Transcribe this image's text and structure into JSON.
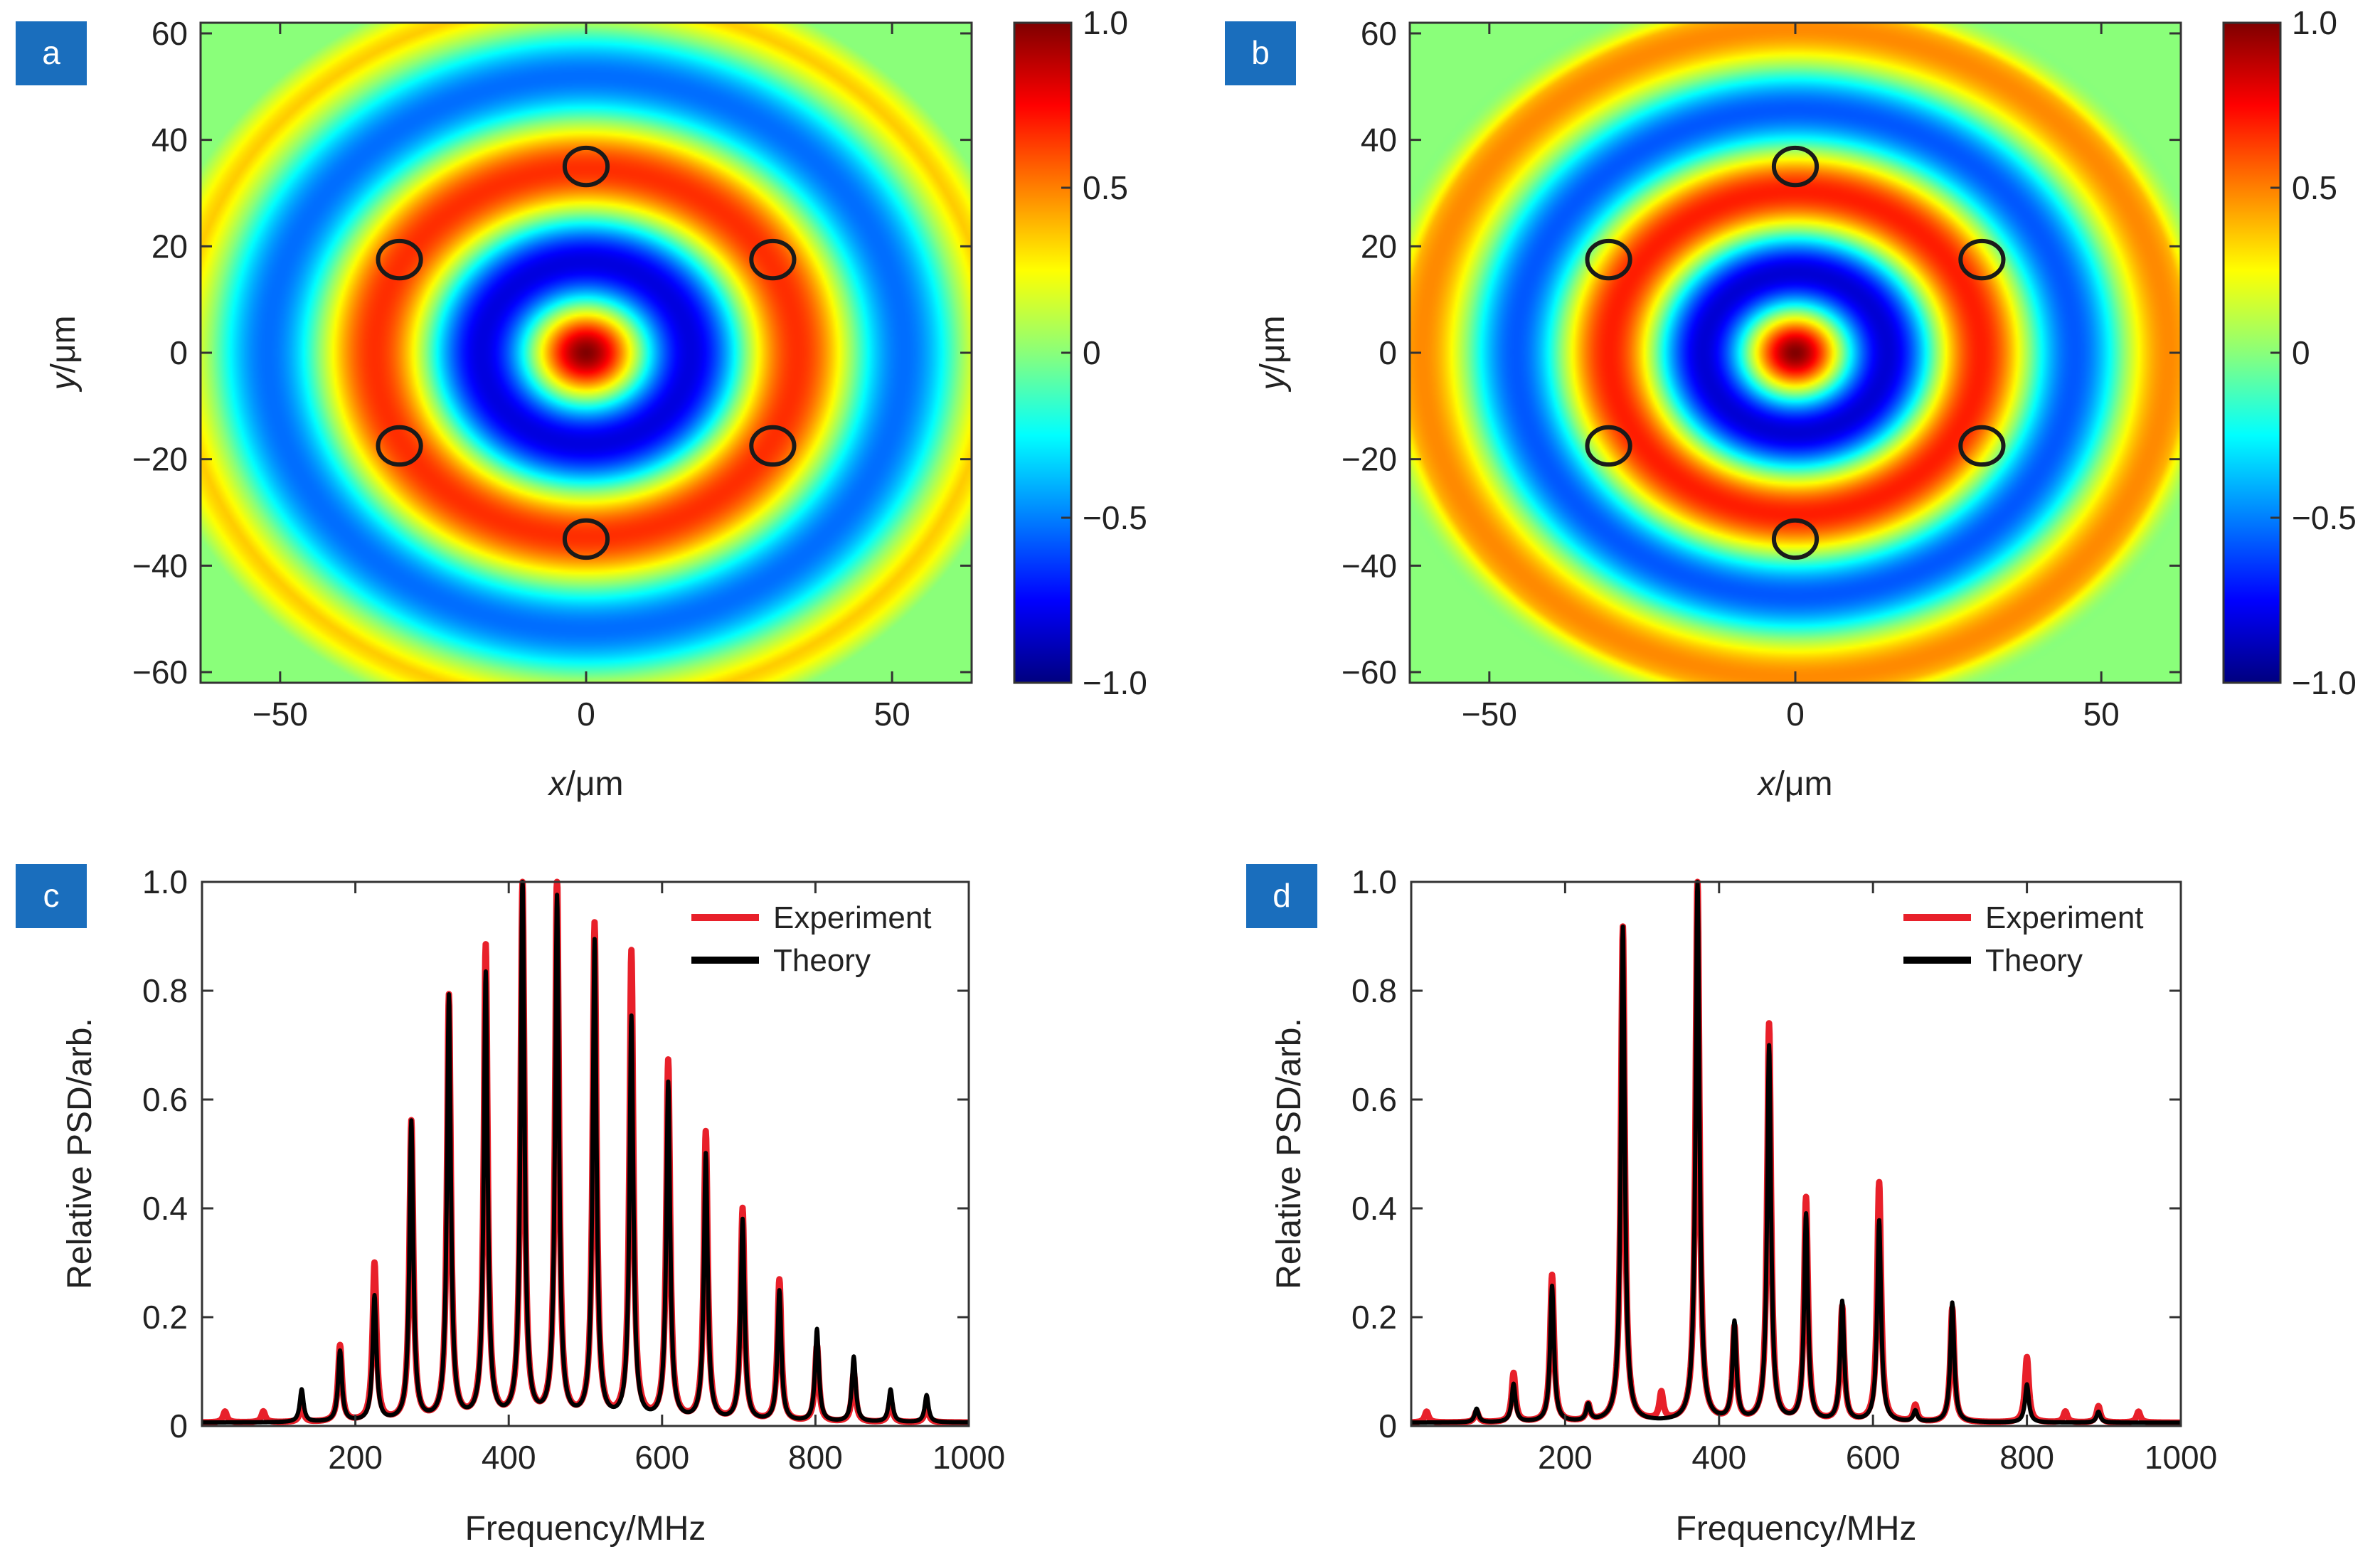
{
  "chart_data": [
    {
      "panel": "a",
      "type": "heatmap",
      "xlabel_var": "x",
      "xlabel_unit": "/μm",
      "ylabel_var": "y",
      "ylabel_unit": "/μm",
      "xlim": [
        -63,
        63
      ],
      "ylim": [
        -62,
        62
      ],
      "x_ticks": [
        {
          "v": -50,
          "t": "−50"
        },
        {
          "v": 0,
          "t": "0"
        },
        {
          "v": 50,
          "t": "50"
        }
      ],
      "y_ticks": [
        {
          "v": 60,
          "t": "60"
        },
        {
          "v": 40,
          "t": "40"
        },
        {
          "v": 20,
          "t": "20"
        },
        {
          "v": 0,
          "t": "0"
        },
        {
          "v": -20,
          "t": "−20"
        },
        {
          "v": -40,
          "t": "−40"
        },
        {
          "v": -60,
          "t": "−60"
        }
      ],
      "colorbar": {
        "min": -1.0,
        "max": 1.0,
        "ticks": [
          {
            "v": 1.0,
            "t": "1.0"
          },
          {
            "v": 0.5,
            "t": "0.5"
          },
          {
            "v": 0,
            "t": "0"
          },
          {
            "v": -0.5,
            "t": "−0.5"
          },
          {
            "v": -1.0,
            "t": "−1.0"
          }
        ]
      },
      "field": {
        "k": 0.18,
        "decay": 0.012,
        "edge_radius": 72
      },
      "markers": [
        [
          0,
          35
        ],
        [
          -30.5,
          17.5
        ],
        [
          30.5,
          17.5
        ],
        [
          -30.5,
          -17.5
        ],
        [
          30.5,
          -17.5
        ],
        [
          0,
          -35
        ]
      ],
      "marker_radius": 3.5
    },
    {
      "panel": "b",
      "type": "heatmap",
      "xlabel_var": "x",
      "xlabel_unit": "/μm",
      "ylabel_var": "y",
      "ylabel_unit": "/μm",
      "xlim": [
        -63,
        63
      ],
      "ylim": [
        -62,
        62
      ],
      "x_ticks": [
        {
          "v": -50,
          "t": "−50"
        },
        {
          "v": 0,
          "t": "0"
        },
        {
          "v": 50,
          "t": "50"
        }
      ],
      "y_ticks": [
        {
          "v": 60,
          "t": "60"
        },
        {
          "v": 40,
          "t": "40"
        },
        {
          "v": 20,
          "t": "20"
        },
        {
          "v": 0,
          "t": "0"
        },
        {
          "v": -20,
          "t": "−20"
        },
        {
          "v": -40,
          "t": "−40"
        },
        {
          "v": -60,
          "t": "−60"
        }
      ],
      "colorbar": {
        "min": -1.0,
        "max": 1.0,
        "ticks": [
          {
            "v": 1.0,
            "t": "1.0"
          },
          {
            "v": 0.5,
            "t": "0.5"
          },
          {
            "v": 0,
            "t": "0"
          },
          {
            "v": -0.5,
            "t": "−0.5"
          },
          {
            "v": -1.0,
            "t": "−1.0"
          }
        ]
      },
      "field": {
        "k": 0.205,
        "decay": 0.012,
        "edge_radius": 70
      },
      "markers": [
        [
          0,
          35
        ],
        [
          -30.5,
          17.5
        ],
        [
          30.5,
          17.5
        ],
        [
          -30.5,
          -17.5
        ],
        [
          30.5,
          -17.5
        ],
        [
          0,
          -35
        ]
      ],
      "marker_radius": 3.5
    },
    {
      "panel": "c",
      "type": "line",
      "xlabel": "Frequency/MHz",
      "ylabel": "Relative PSD/arb.",
      "xlim": [
        0,
        1000
      ],
      "ylim": [
        0,
        1.0
      ],
      "x_ticks": [
        {
          "v": 200,
          "t": "200"
        },
        {
          "v": 400,
          "t": "400"
        },
        {
          "v": 600,
          "t": "600"
        },
        {
          "v": 800,
          "t": "800"
        },
        {
          "v": 1000,
          "t": "1000"
        }
      ],
      "y_ticks": [
        {
          "v": 0,
          "t": "0"
        },
        {
          "v": 0.2,
          "t": "0.2"
        },
        {
          "v": 0.4,
          "t": "0.4"
        },
        {
          "v": 0.6,
          "t": "0.6"
        },
        {
          "v": 0.8,
          "t": "0.8"
        },
        {
          "v": 1.0,
          "t": "1.0"
        }
      ],
      "legend_position": "top-right",
      "peak_width_mhz": 3,
      "series": [
        {
          "name": "Experiment",
          "color": "#e8202a",
          "peaks": [
            [
              30,
              0.02
            ],
            [
              80,
              0.02
            ],
            [
              130,
              0.03
            ],
            [
              180,
              0.14
            ],
            [
              225,
              0.29
            ],
            [
              273,
              0.55
            ],
            [
              322,
              0.78
            ],
            [
              370,
              0.87
            ],
            [
              418,
              0.99
            ],
            [
              463,
              1.0
            ],
            [
              512,
              0.91
            ],
            [
              560,
              0.86
            ],
            [
              608,
              0.66
            ],
            [
              657,
              0.53
            ],
            [
              705,
              0.39
            ],
            [
              753,
              0.26
            ],
            [
              802,
              0.14
            ],
            [
              850,
              0.09
            ],
            [
              898,
              0.04
            ],
            [
              945,
              0.03
            ]
          ]
        },
        {
          "name": "Theory",
          "color": "#000000",
          "peaks": [
            [
              130,
              0.06
            ],
            [
              180,
              0.13
            ],
            [
              225,
              0.23
            ],
            [
              273,
              0.55
            ],
            [
              322,
              0.78
            ],
            [
              370,
              0.82
            ],
            [
              418,
              1.0
            ],
            [
              463,
              0.96
            ],
            [
              512,
              0.88
            ],
            [
              560,
              0.74
            ],
            [
              608,
              0.62
            ],
            [
              657,
              0.49
            ],
            [
              705,
              0.37
            ],
            [
              753,
              0.24
            ],
            [
              802,
              0.17
            ],
            [
              850,
              0.12
            ],
            [
              898,
              0.06
            ],
            [
              945,
              0.05
            ]
          ]
        }
      ]
    },
    {
      "panel": "d",
      "type": "line",
      "xlabel": "Frequency/MHz",
      "ylabel": "Relative PSD/arb.",
      "xlim": [
        0,
        1000
      ],
      "ylim": [
        0,
        1.0
      ],
      "x_ticks": [
        {
          "v": 200,
          "t": "200"
        },
        {
          "v": 400,
          "t": "400"
        },
        {
          "v": 600,
          "t": "600"
        },
        {
          "v": 800,
          "t": "800"
        },
        {
          "v": 1000,
          "t": "1000"
        }
      ],
      "y_ticks": [
        {
          "v": 0,
          "t": "0"
        },
        {
          "v": 0.2,
          "t": "0.2"
        },
        {
          "v": 0.4,
          "t": "0.4"
        },
        {
          "v": 0.6,
          "t": "0.6"
        },
        {
          "v": 0.8,
          "t": "0.8"
        },
        {
          "v": 1.0,
          "t": "1.0"
        }
      ],
      "legend_position": "top-right",
      "peak_width_mhz": 3,
      "series": [
        {
          "name": "Experiment",
          "color": "#e8202a",
          "peaks": [
            [
              20,
              0.02
            ],
            [
              85,
              0.02
            ],
            [
              133,
              0.09
            ],
            [
              183,
              0.27
            ],
            [
              230,
              0.03
            ],
            [
              275,
              0.91
            ],
            [
              325,
              0.05
            ],
            [
              372,
              1.0
            ],
            [
              420,
              0.17
            ],
            [
              465,
              0.73
            ],
            [
              513,
              0.41
            ],
            [
              560,
              0.21
            ],
            [
              608,
              0.44
            ],
            [
              655,
              0.03
            ],
            [
              703,
              0.21
            ],
            [
              800,
              0.12
            ],
            [
              850,
              0.02
            ],
            [
              893,
              0.03
            ],
            [
              945,
              0.02
            ]
          ]
        },
        {
          "name": "Theory",
          "color": "#000000",
          "peaks": [
            [
              85,
              0.025
            ],
            [
              133,
              0.07
            ],
            [
              183,
              0.25
            ],
            [
              230,
              0.03
            ],
            [
              275,
              0.91
            ],
            [
              372,
              1.0
            ],
            [
              420,
              0.18
            ],
            [
              465,
              0.69
            ],
            [
              513,
              0.38
            ],
            [
              560,
              0.22
            ],
            [
              608,
              0.37
            ],
            [
              655,
              0.02
            ],
            [
              703,
              0.22
            ],
            [
              800,
              0.07
            ],
            [
              893,
              0.02
            ]
          ]
        }
      ]
    }
  ]
}
